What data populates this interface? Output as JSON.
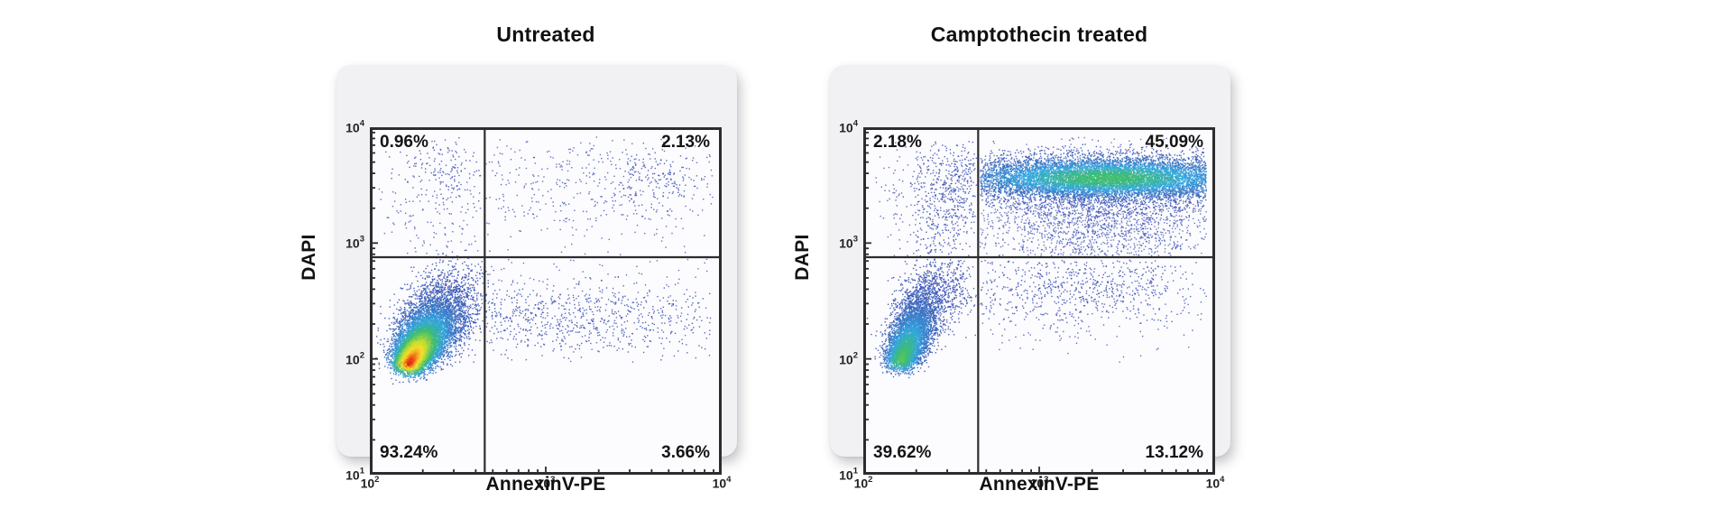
{
  "page": {
    "background": "#ffffff"
  },
  "style": {
    "panel_bg": "#f1f1f3",
    "plot_bg": "#fcfcfe",
    "axis_color": "#2c2c2e",
    "gate_color": "#2c2c2e",
    "text_color": "#141414",
    "dot_color": "#3a4db1",
    "jet_stops": [
      {
        "t": 0.0,
        "c": "#3a4db1"
      },
      {
        "t": 0.3,
        "c": "#31a8e0"
      },
      {
        "t": 0.5,
        "c": "#3fbf6b"
      },
      {
        "t": 0.7,
        "c": "#c2dc33"
      },
      {
        "t": 0.82,
        "c": "#f5df2b"
      },
      {
        "t": 0.91,
        "c": "#f59d20"
      },
      {
        "t": 1.0,
        "c": "#e02318"
      }
    ]
  },
  "chart_data": [
    {
      "id": "untreated",
      "type": "scatter",
      "title": "Untreated",
      "xlabel": "AnnexinV-PE",
      "ylabel": "DAPI",
      "x_log_range": [
        2,
        4
      ],
      "y_log_range": [
        1,
        4
      ],
      "x_ticks": [
        "10^2",
        "10^3",
        "10^4"
      ],
      "y_ticks": [
        "10^1",
        "10^2",
        "10^3",
        "10^4"
      ],
      "grid": false,
      "gate": {
        "x_log": 2.653,
        "y_log": 2.878
      },
      "quadrants": {
        "tl": "0.96%",
        "tr": "2.13%",
        "bl": "93.24%",
        "br": "3.66%"
      },
      "populations": [
        {
          "name": "viable-comet-core",
          "kind": "comet",
          "count": 9500,
          "x0": 2.22,
          "y0": 1.95,
          "dx": 0.22,
          "dy": 0.56,
          "spread": 0.5,
          "clamp": 1.35,
          "perp_x0": 0.05,
          "perp_x1": 0.11,
          "perp_y0": 0.055,
          "perp_y1": 0.13,
          "color": "jet",
          "jet_max": 1.0,
          "seed": 11
        },
        {
          "name": "bl-spill",
          "kind": "gauss",
          "count": 160,
          "cx": 2.5,
          "cy": 2.35,
          "sx": 0.16,
          "sy": 0.25,
          "color": "plain",
          "alpha": 0.85,
          "clip": [
            2.03,
            2.645,
            1.93,
            2.86
          ],
          "seed": 12
        },
        {
          "name": "br-band",
          "kind": "gauss",
          "count": 620,
          "cx": 3.15,
          "cy": 2.32,
          "sx": 0.5,
          "sy": 0.16,
          "color": "plain",
          "alpha": 0.85,
          "clip": [
            2.66,
            3.95,
            1.95,
            2.86
          ],
          "seed": 13
        },
        {
          "name": "br-sparse",
          "kind": "gauss",
          "count": 160,
          "cx": 3.2,
          "cy": 2.55,
          "sx": 0.55,
          "sy": 0.28,
          "color": "plain",
          "alpha": 0.8,
          "clip": [
            2.66,
            3.95,
            1.95,
            2.86
          ],
          "seed": 14
        },
        {
          "name": "tl-upper-cluster",
          "kind": "gauss",
          "count": 150,
          "cx": 2.42,
          "cy": 3.62,
          "sx": 0.13,
          "sy": 0.16,
          "color": "plain",
          "alpha": 0.85,
          "clip": [
            2.05,
            2.645,
            2.9,
            3.92
          ],
          "seed": 15
        },
        {
          "name": "tl-sparse",
          "kind": "gauss",
          "count": 130,
          "cx": 2.36,
          "cy": 3.25,
          "sx": 0.17,
          "sy": 0.3,
          "color": "plain",
          "alpha": 0.8,
          "clip": [
            2.05,
            2.645,
            2.9,
            3.92
          ],
          "seed": 16
        },
        {
          "name": "tr-sparse",
          "kind": "gauss",
          "count": 430,
          "cx": 3.3,
          "cy": 3.5,
          "sx": 0.45,
          "sy": 0.3,
          "color": "plain",
          "alpha": 0.8,
          "clip": [
            2.66,
            3.95,
            2.9,
            3.92
          ],
          "seed": 17
        },
        {
          "name": "tr-cluster",
          "kind": "gauss",
          "count": 120,
          "cx": 3.62,
          "cy": 3.55,
          "sx": 0.12,
          "sy": 0.12,
          "color": "plain",
          "alpha": 0.85,
          "clip": [
            2.66,
            3.95,
            2.9,
            3.92
          ],
          "seed": 18
        }
      ]
    },
    {
      "id": "camptothecin-treated",
      "type": "scatter",
      "title": "Camptothecin treated",
      "xlabel": "AnnexinV-PE",
      "ylabel": "DAPI",
      "x_log_range": [
        2,
        4
      ],
      "y_log_range": [
        1,
        4
      ],
      "x_ticks": [
        "10^2",
        "10^3",
        "10^4"
      ],
      "y_ticks": [
        "10^1",
        "10^2",
        "10^3",
        "10^4"
      ],
      "grid": false,
      "gate": {
        "x_log": 2.653,
        "y_log": 2.878
      },
      "quadrants": {
        "tl": "2.18%",
        "tr": "45.09%",
        "bl": "39.62%",
        "br": "13.12%"
      },
      "populations": [
        {
          "name": "viable-comet-core",
          "kind": "comet",
          "count": 5200,
          "x0": 2.21,
          "y0": 1.97,
          "dx": 0.16,
          "dy": 0.62,
          "spread": 0.5,
          "clamp": 1.32,
          "perp_x0": 0.045,
          "perp_x1": 0.08,
          "perp_y0": 0.05,
          "perp_y1": 0.11,
          "color": "jet",
          "jet_max": 0.55,
          "seed": 21
        },
        {
          "name": "bl-spill",
          "kind": "gauss",
          "count": 240,
          "cx": 2.52,
          "cy": 2.6,
          "sx": 0.11,
          "sy": 0.16,
          "color": "plain",
          "alpha": 0.85,
          "clip": [
            2.04,
            2.645,
            1.95,
            2.86
          ],
          "seed": 22
        },
        {
          "name": "tl-column",
          "kind": "gauss",
          "count": 430,
          "cx": 2.48,
          "cy": 3.3,
          "sx": 0.11,
          "sy": 0.3,
          "color": "plain",
          "alpha": 0.85,
          "clip": [
            2.06,
            2.645,
            2.89,
            3.88
          ],
          "seed": 23
        },
        {
          "name": "tl-sparse",
          "kind": "gauss",
          "count": 140,
          "cx": 2.32,
          "cy": 3.5,
          "sx": 0.18,
          "sy": 0.28,
          "color": "plain",
          "alpha": 0.8,
          "clip": [
            2.06,
            2.645,
            2.89,
            3.88
          ],
          "seed": 24
        },
        {
          "name": "tl-band-bleed",
          "kind": "gauss",
          "count": 80,
          "cx": 2.56,
          "cy": 3.6,
          "sx": 0.08,
          "sy": 0.13,
          "color": "plain",
          "alpha": 0.85,
          "clip": [
            2.06,
            2.645,
            2.89,
            3.88
          ],
          "seed": 25
        },
        {
          "name": "tr-apoptotic-band",
          "kind": "gauss",
          "count": 8200,
          "cx": 3.38,
          "cy": 3.56,
          "sx": 0.45,
          "sy": 0.095,
          "color": "jet",
          "jet_max": 0.5,
          "clip": [
            2.665,
            3.95,
            2.89,
            3.92
          ],
          "seed": 26
        },
        {
          "name": "tr-under-cloud",
          "kind": "gauss",
          "count": 2400,
          "cx": 3.33,
          "cy": 3.27,
          "sx": 0.38,
          "sy": 0.26,
          "color": "plain",
          "alpha": 0.75,
          "clip": [
            2.665,
            3.95,
            2.89,
            3.92
          ],
          "seed": 27
        },
        {
          "name": "br-band",
          "kind": "gauss",
          "count": 620,
          "cx": 3.22,
          "cy": 2.62,
          "sx": 0.42,
          "sy": 0.16,
          "color": "plain",
          "alpha": 0.85,
          "clip": [
            2.665,
            3.95,
            1.95,
            2.855
          ],
          "seed": 28
        },
        {
          "name": "br-sparse",
          "kind": "gauss",
          "count": 130,
          "cx": 3.2,
          "cy": 2.4,
          "sx": 0.45,
          "sy": 0.22,
          "color": "plain",
          "alpha": 0.8,
          "clip": [
            2.665,
            3.95,
            1.95,
            2.855
          ],
          "seed": 29
        }
      ]
    }
  ]
}
